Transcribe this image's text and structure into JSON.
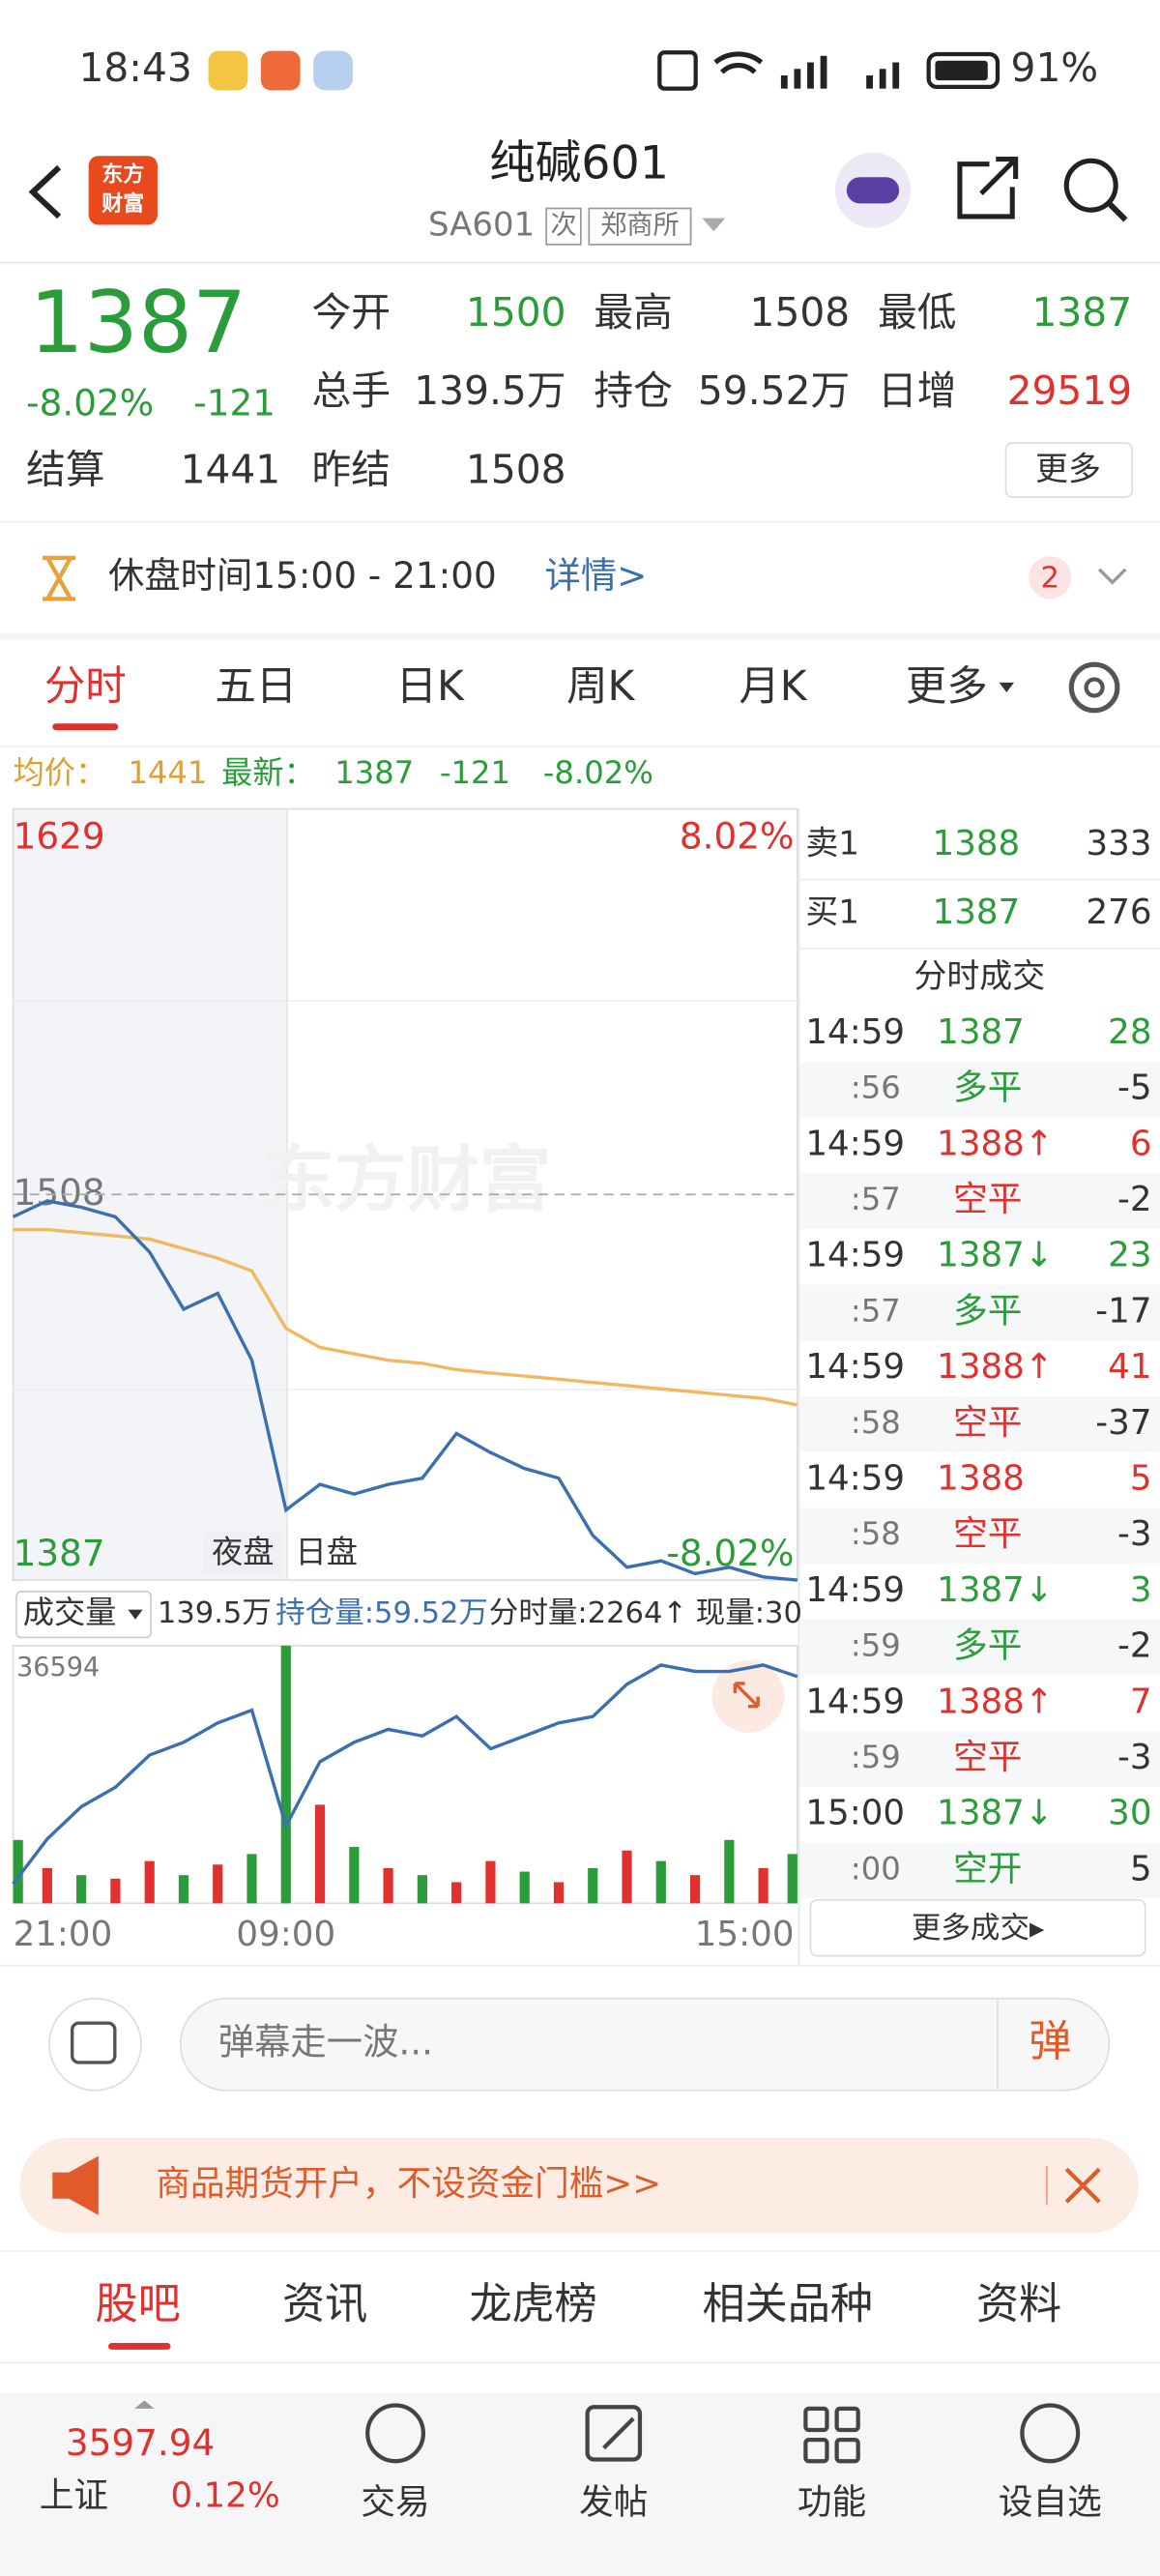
{
  "status_bar": {
    "time": "18:43",
    "battery": "91%"
  },
  "header": {
    "logo": [
      "东方",
      "财富"
    ],
    "title": "纯碱601",
    "code": "SA601",
    "badge": "次",
    "exchange": "郑商所"
  },
  "quote": {
    "price": "1387",
    "change_pct": "-8.02%",
    "change": "-121",
    "fields": [
      {
        "label": "今开",
        "value": "1500"
      },
      {
        "label": "最高",
        "value": "1508"
      },
      {
        "label": "最低",
        "value": "1387"
      },
      {
        "label": "总手",
        "value": "139.5万"
      },
      {
        "label": "持仓",
        "value": "59.52万"
      },
      {
        "label": "日增",
        "value": "29519"
      },
      {
        "label": "结算",
        "value": "1441"
      },
      {
        "label": "昨结",
        "value": "1508"
      }
    ],
    "more": "更多"
  },
  "notice": {
    "text": "休盘时间15:00 - 21:00",
    "link": "详情>",
    "count": "2"
  },
  "tabs": [
    "分时",
    "五日",
    "日K",
    "周K",
    "月K",
    "更多"
  ],
  "info_line": {
    "avg_label": "均价：",
    "avg": "1441",
    "latest_label": "最新：",
    "latest": "1387",
    "change": "-121",
    "pct": "-8.02%"
  },
  "chart_data": [
    {
      "type": "line",
      "categories": [
        "21:00",
        null,
        null,
        null,
        null,
        null,
        null,
        null,
        "09:00",
        null,
        null,
        null,
        null,
        null,
        null,
        null,
        null,
        null,
        null,
        null,
        null,
        null,
        null,
        "15:00"
      ],
      "series": [
        {
          "color": "#3a6fb0",
          "values": [
            1501,
            1506,
            1504,
            1501,
            1490,
            1472,
            1477,
            1456,
            1409,
            1417,
            1414,
            1417,
            1419,
            1433,
            1427,
            1422,
            1419,
            1401,
            1391,
            1393,
            1389,
            1391,
            1388,
            1387
          ]
        },
        {
          "color": "#f0b860",
          "values": [
            1497,
            1497,
            1496,
            1495,
            1494,
            1491,
            1488,
            1484,
            1466,
            1460,
            1458,
            1456,
            1455,
            1453,
            1452,
            1451,
            1450,
            1449,
            1448,
            1447,
            1446,
            1445,
            1444,
            1442
          ]
        }
      ],
      "ylim": [
        1387,
        1629
      ],
      "yticks": [
        1387,
        1508,
        1629
      ],
      "y2lim": [
        -8.02,
        8.02
      ],
      "y2ticks": [
        {
          "value": 8.02,
          "label": "8.02%"
        },
        {
          "value": -8.02,
          "label": "-8.02%"
        }
      ],
      "session_labels": [
        "夜盘",
        "日盘"
      ],
      "watermark": "东方财富"
    },
    {
      "type": "bar",
      "title": "成交量",
      "total": "139.5万",
      "oi_label": "持仓量:59.52万",
      "tick_volume": "分时量:2264↑",
      "last_volume": "现量:30",
      "categories": [
        "21:00",
        null,
        null,
        null,
        null,
        null,
        null,
        null,
        "09:00",
        null,
        null,
        null,
        null,
        null,
        null,
        null,
        null,
        null,
        null,
        null,
        null,
        null,
        null,
        "15:00"
      ],
      "series": [
        {
          "colors": [
            "#2a9d3a",
            "#e0312f",
            "#2a9d3a",
            "#e0312f",
            "#e0312f",
            "#2a9d3a",
            "#e0312f",
            "#2a9d3a",
            "#2a9d3a",
            "#e0312f",
            "#2a9d3a",
            "#e0312f",
            "#2a9d3a",
            "#e0312f",
            "#e0312f",
            "#2a9d3a",
            "#e0312f",
            "#2a9d3a",
            "#e0312f",
            "#2a9d3a",
            "#e0312f",
            "#2a9d3a",
            "#e0312f",
            "#2a9d3a"
          ],
          "values": [
            9000,
            5000,
            4000,
            3500,
            6000,
            4000,
            5500,
            7000,
            36594,
            14000,
            8000,
            5000,
            4000,
            3000,
            6000,
            4500,
            3000,
            5000,
            7500,
            6000,
            4000,
            9000,
            5000,
            7000
          ]
        },
        {
          "color": "#3a6fb0",
          "axis": "y2",
          "values": [
            563000,
            570000,
            575000,
            578000,
            583000,
            585000,
            588000,
            590000,
            572000,
            582000,
            585000,
            587000,
            586000,
            589000,
            584000,
            586000,
            588000,
            589000,
            594000,
            597000,
            596000,
            596000,
            597000,
            595200
          ]
        }
      ],
      "ylim": [
        0,
        36594
      ],
      "yticks": [
        36594
      ],
      "y2lim": [
        560000,
        600000
      ]
    }
  ],
  "order_book": [
    {
      "label": "卖1",
      "price": "1388",
      "volume": "333"
    },
    {
      "label": "买1",
      "price": "1387",
      "volume": "276"
    }
  ],
  "trades": {
    "title": "分时成交",
    "more": "更多成交▸",
    "rows": [
      {
        "time": "14:59",
        "price": "1387",
        "volume": "28",
        "sub_time": ":56",
        "kind": "多平",
        "change": "-5"
      },
      {
        "time": "14:59",
        "price": "1388↑",
        "volume": "6",
        "sub_time": ":57",
        "kind": "空平",
        "change": "-2"
      },
      {
        "time": "14:59",
        "price": "1387↓",
        "volume": "23",
        "sub_time": ":57",
        "kind": "多平",
        "change": "-17"
      },
      {
        "time": "14:59",
        "price": "1388↑",
        "volume": "41",
        "sub_time": ":58",
        "kind": "空平",
        "change": "-37"
      },
      {
        "time": "14:59",
        "price": "1388",
        "volume": "5",
        "sub_time": ":58",
        "kind": "空平",
        "change": "-3"
      },
      {
        "time": "14:59",
        "price": "1387↓",
        "volume": "3",
        "sub_time": ":59",
        "kind": "多平",
        "change": "-2"
      },
      {
        "time": "14:59",
        "price": "1388↑",
        "volume": "7",
        "sub_time": ":59",
        "kind": "空平",
        "change": "-3"
      },
      {
        "time": "15:00",
        "price": "1387↓",
        "volume": "30",
        "sub_time": ":00",
        "kind": "空开",
        "change": "5"
      }
    ]
  },
  "comment": {
    "placeholder": "弹幕走一波...",
    "button": "弹"
  },
  "banner": {
    "text": "商品期货开户，不设资金门槛>>"
  },
  "bottom_tabs": [
    "股吧",
    "资讯",
    "龙虎榜",
    "相关品种",
    "资料"
  ],
  "nav": {
    "index_value": "3597.94",
    "index_name": "上证",
    "index_pct": "0.12%",
    "items": [
      "交易",
      "发帖",
      "功能",
      "设自选"
    ]
  }
}
